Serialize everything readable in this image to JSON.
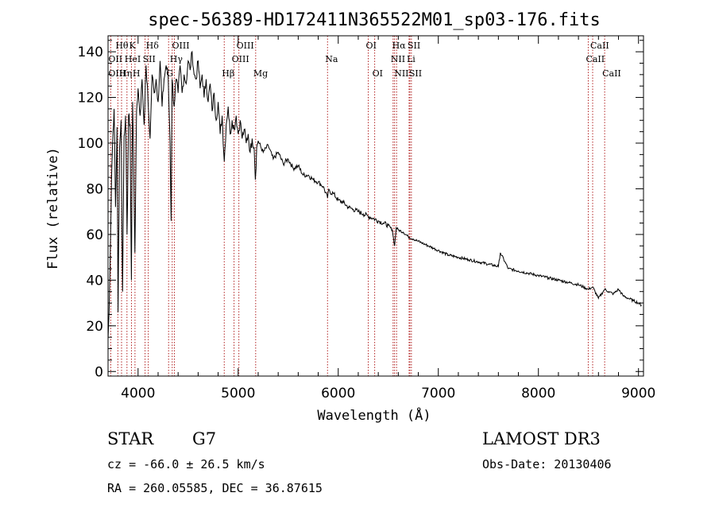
{
  "chart_data": {
    "type": "line",
    "title": "spec-56389-HD172411N365522M01_sp03-176.fits",
    "xlabel": "Wavelength (Å)",
    "ylabel": "Flux (relative)",
    "xlim": [
      3700,
      9050
    ],
    "ylim": [
      -2,
      147
    ],
    "xticks": [
      4000,
      5000,
      6000,
      7000,
      8000,
      9000
    ],
    "yticks": [
      0,
      20,
      40,
      60,
      80,
      100,
      120,
      140
    ],
    "series": [
      {
        "name": "flux",
        "x": [
          3700,
          3710,
          3725,
          3735,
          3745,
          3760,
          3775,
          3790,
          3800,
          3815,
          3830,
          3845,
          3860,
          3875,
          3890,
          3905,
          3920,
          3933,
          3945,
          3955,
          3968,
          3985,
          4000,
          4020,
          4040,
          4060,
          4080,
          4100,
          4120,
          4140,
          4160,
          4180,
          4200,
          4220,
          4240,
          4260,
          4280,
          4300,
          4320,
          4330,
          4340,
          4360,
          4380,
          4400,
          4420,
          4440,
          4460,
          4480,
          4500,
          4520,
          4540,
          4560,
          4580,
          4600,
          4620,
          4640,
          4660,
          4680,
          4700,
          4720,
          4740,
          4760,
          4780,
          4800,
          4820,
          4840,
          4861,
          4880,
          4900,
          4920,
          4940,
          4960,
          4980,
          5000,
          5020,
          5040,
          5060,
          5080,
          5100,
          5120,
          5140,
          5160,
          5172,
          5185,
          5200,
          5250,
          5300,
          5350,
          5400,
          5450,
          5500,
          5550,
          5600,
          5650,
          5700,
          5750,
          5800,
          5850,
          5893,
          5900,
          5950,
          6000,
          6050,
          6100,
          6150,
          6200,
          6250,
          6300,
          6350,
          6400,
          6450,
          6500,
          6540,
          6563,
          6580,
          6600,
          6650,
          6700,
          6750,
          6800,
          6850,
          6900,
          6950,
          7000,
          7100,
          7200,
          7300,
          7400,
          7500,
          7600,
          7620,
          7700,
          7800,
          7900,
          8000,
          8100,
          8200,
          8300,
          8400,
          8450,
          8498,
          8542,
          8600,
          8662,
          8700,
          8750,
          8800,
          8850,
          8900,
          8950,
          9000,
          9030
        ],
        "values": [
          14,
          26,
          58,
          85,
          100,
          115,
          72,
          107,
          26,
          98,
          110,
          35,
          103,
          112,
          60,
          112,
          108,
          40,
          118,
          95,
          52,
          114,
          124,
          112,
          128,
          108,
          134,
          118,
          102,
          130,
          122,
          128,
          118,
          136,
          116,
          128,
          134,
          130,
          100,
          66,
          128,
          116,
          128,
          122,
          134,
          122,
          130,
          126,
          136,
          132,
          140,
          130,
          128,
          136,
          124,
          130,
          120,
          128,
          118,
          126,
          114,
          122,
          110,
          118,
          104,
          112,
          92,
          108,
          116,
          104,
          110,
          106,
          112,
          104,
          110,
          102,
          106,
          100,
          104,
          96,
          102,
          98,
          84,
          98,
          101,
          96,
          99,
          93,
          96,
          91,
          93,
          89,
          90,
          86,
          86,
          84,
          83,
          81,
          76,
          79,
          78,
          75,
          74,
          72,
          71,
          70,
          69,
          68,
          67,
          66,
          65,
          64,
          62,
          55,
          63,
          62,
          61,
          59,
          58,
          57,
          56,
          55,
          54,
          53,
          51,
          50,
          49,
          48,
          47,
          46,
          52,
          45,
          44,
          43,
          42,
          41,
          40,
          39,
          38,
          37,
          36,
          37,
          32,
          36,
          35,
          34,
          36,
          33,
          32,
          31,
          30,
          29
        ]
      }
    ],
    "line_labels": [
      {
        "label": "Hθ",
        "wavelength": 3798,
        "row": 1
      },
      {
        "label": "OII",
        "wavelength": 3727,
        "row": 2
      },
      {
        "label": "OIII",
        "wavelength": 3727,
        "row": 3
      },
      {
        "label": "Hη",
        "wavelength": 3835,
        "row": 3
      },
      {
        "label": "K",
        "wavelength": 3934,
        "row": 1
      },
      {
        "label": "HeI",
        "wavelength": 3889,
        "row": 2
      },
      {
        "label": "H",
        "wavelength": 3969,
        "row": 3
      },
      {
        "label": "Hδ",
        "wavelength": 4102,
        "row": 1
      },
      {
        "label": "SII",
        "wavelength": 4070,
        "row": 2
      },
      {
        "label": "OIII",
        "wavelength": 4363,
        "row": 1
      },
      {
        "label": "Hγ",
        "wavelength": 4341,
        "row": 2
      },
      {
        "label": "G",
        "wavelength": 4305,
        "row": 3
      },
      {
        "label": "OIII",
        "wavelength": 5007,
        "row": 1
      },
      {
        "label": "OIII",
        "wavelength": 4959,
        "row": 2
      },
      {
        "label": "Hβ",
        "wavelength": 4861,
        "row": 3
      },
      {
        "label": "Mg",
        "wavelength": 5175,
        "row": 3
      },
      {
        "label": "Na",
        "wavelength": 5893,
        "row": 2
      },
      {
        "label": "OI",
        "wavelength": 6300,
        "row": 1
      },
      {
        "label": "OI",
        "wavelength": 6364,
        "row": 3
      },
      {
        "label": "Hα",
        "wavelength": 6563,
        "row": 1
      },
      {
        "label": "SII",
        "wavelength": 6716,
        "row": 1
      },
      {
        "label": "NII",
        "wavelength": 6548,
        "row": 2
      },
      {
        "label": "Li",
        "wavelength": 6708,
        "row": 2
      },
      {
        "label": "NII",
        "wavelength": 6583,
        "row": 3
      },
      {
        "label": "SII",
        "wavelength": 6731,
        "row": 3
      },
      {
        "label": "CaII",
        "wavelength": 8542,
        "row": 1
      },
      {
        "label": "CaII",
        "wavelength": 8498,
        "row": 2
      },
      {
        "label": "CaII",
        "wavelength": 8662,
        "row": 3
      }
    ],
    "line_marker_wavelengths": [
      3727,
      3798,
      3835,
      3889,
      3934,
      3969,
      4070,
      4102,
      4305,
      4341,
      4363,
      4861,
      4959,
      5007,
      5175,
      5893,
      6300,
      6364,
      6548,
      6563,
      6583,
      6708,
      6716,
      6731,
      8498,
      8542,
      8662
    ]
  },
  "info": {
    "object_class": "STAR",
    "subclass": "G7",
    "survey": "LAMOST DR3",
    "cz": "cz = -66.0 ± 26.5 km/s",
    "obs_date": "Obs-Date: 20130406",
    "coords": "RA = 260.05585, DEC =  36.87615"
  },
  "colors": {
    "line_marker": "#b22222",
    "axis": "#000000",
    "background": "#ffffff"
  }
}
